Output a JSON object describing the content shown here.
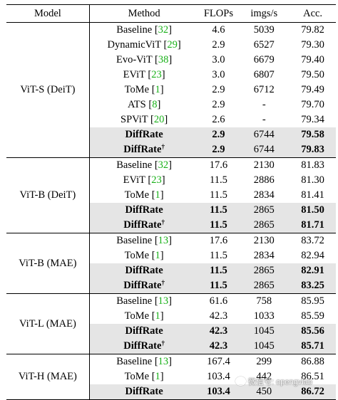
{
  "header": {
    "model": "Model",
    "method": "Method",
    "flops": "FLOPs",
    "imgs": "imgs/s",
    "acc": "Acc."
  },
  "groups": [
    {
      "model": "ViT-S (DeiT)",
      "rows": [
        {
          "method": "Baseline",
          "ref": "32",
          "flops": "4.6",
          "imgs": "5039",
          "acc": "79.82"
        },
        {
          "method": "DynamicViT",
          "ref": "29",
          "flops": "2.9",
          "imgs": "6527",
          "acc": "79.30"
        },
        {
          "method": "Evo-ViT",
          "ref": "38",
          "flops": "3.0",
          "imgs": "6679",
          "acc": "79.40"
        },
        {
          "method": "EViT",
          "ref": "23",
          "flops": "3.0",
          "imgs": "6807",
          "acc": "79.50"
        },
        {
          "method": "ToMe",
          "ref": "1",
          "flops": "2.9",
          "imgs": "6712",
          "acc": "79.49"
        },
        {
          "method": "ATS",
          "ref": "8",
          "flops": "2.9",
          "imgs": "-",
          "acc": "79.70"
        },
        {
          "method": "SPViT",
          "ref": "20",
          "flops": "2.6",
          "imgs": "-",
          "acc": "79.34"
        },
        {
          "method": "DiffRate",
          "dagger": "",
          "flops": "2.9",
          "imgs": "6744",
          "acc": "79.58"
        },
        {
          "method": "DiffRate",
          "dagger": "†",
          "flops": "2.9",
          "imgs": "6744",
          "acc": "79.83"
        }
      ]
    },
    {
      "model": "ViT-B (DeiT)",
      "rows": [
        {
          "method": "Baseline",
          "ref": "32",
          "flops": "17.6",
          "imgs": "2130",
          "acc": "81.83"
        },
        {
          "method": "EViT",
          "ref": "23",
          "flops": "11.5",
          "imgs": "2886",
          "acc": "81.30"
        },
        {
          "method": "ToMe",
          "ref": "1",
          "flops": "11.5",
          "imgs": "2834",
          "acc": "81.41"
        },
        {
          "method": "DiffRate",
          "dagger": "",
          "flops": "11.5",
          "imgs": "2865",
          "acc": "81.50"
        },
        {
          "method": "DiffRate",
          "dagger": "†",
          "flops": "11.5",
          "imgs": "2865",
          "acc": "81.71"
        }
      ]
    },
    {
      "model": "ViT-B (MAE)",
      "rows": [
        {
          "method": "Baseline",
          "ref": "13",
          "flops": "17.6",
          "imgs": "2130",
          "acc": "83.72"
        },
        {
          "method": "ToMe",
          "ref": "1",
          "flops": "11.5",
          "imgs": "2834",
          "acc": "82.94"
        },
        {
          "method": "DiffRate",
          "dagger": "",
          "flops": "11.5",
          "imgs": "2865",
          "acc": "82.91"
        },
        {
          "method": "DiffRate",
          "dagger": "†",
          "flops": "11.5",
          "imgs": "2865",
          "acc": "83.25"
        }
      ]
    },
    {
      "model": "ViT-L (MAE)",
      "rows": [
        {
          "method": "Baseline",
          "ref": "13",
          "flops": "61.6",
          "imgs": "758",
          "acc": "85.95"
        },
        {
          "method": "ToMe",
          "ref": "1",
          "flops": "42.3",
          "imgs": "1033",
          "acc": "85.59"
        },
        {
          "method": "DiffRate",
          "dagger": "",
          "flops": "42.3",
          "imgs": "1045",
          "acc": "85.56"
        },
        {
          "method": "DiffRate",
          "dagger": "†",
          "flops": "42.3",
          "imgs": "1045",
          "acc": "85.71"
        }
      ]
    },
    {
      "model": "ViT-H (MAE)",
      "rows": [
        {
          "method": "Baseline",
          "ref": "13",
          "flops": "167.4",
          "imgs": "299",
          "acc": "86.88"
        },
        {
          "method": "ToMe",
          "ref": "1",
          "flops": "103.4",
          "imgs": "442",
          "acc": "86.51"
        },
        {
          "method": "DiffRate",
          "dagger": "",
          "flops": "103.4",
          "imgs": "450",
          "acc": "86.72"
        }
      ]
    }
  ],
  "watermark": {
    "text": "微信号: opengvlab",
    "icon": "wechat-icon"
  }
}
